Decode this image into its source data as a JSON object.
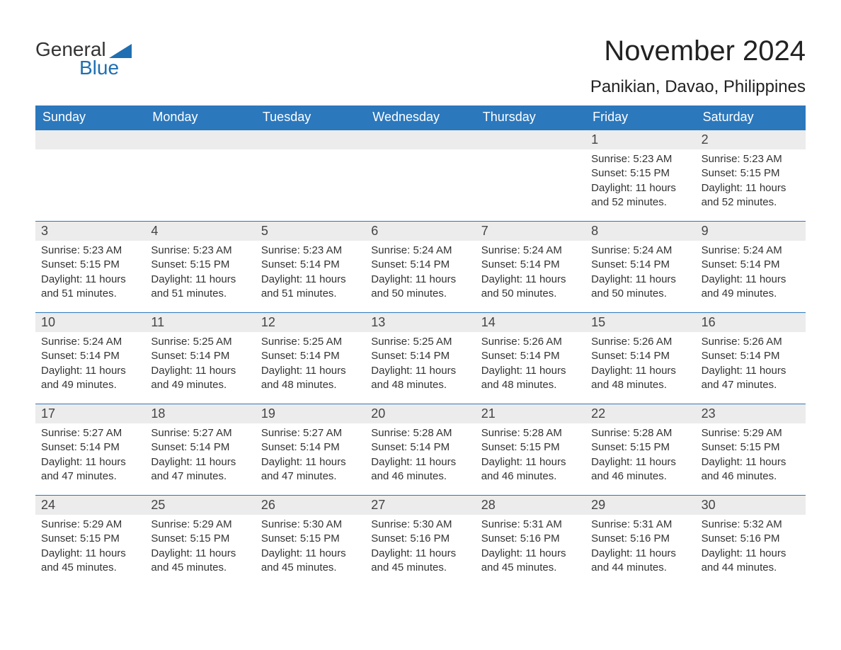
{
  "logo": {
    "line1": "General",
    "line2": "Blue",
    "accent_color": "#1f6fb2",
    "text_color": "#333333"
  },
  "title": {
    "month": "November 2024",
    "location": "Panikian, Davao, Philippines",
    "month_fontsize": 40,
    "location_fontsize": 24,
    "text_color": "#222222"
  },
  "calendar": {
    "type": "calendar-table",
    "header_bg": "#2b78bd",
    "header_text_color": "#ffffff",
    "daynum_band_bg": "#ececec",
    "week_divider_color": "#2b78bd",
    "body_text_color": "#333333",
    "body_fontsize": 15,
    "daynum_fontsize": 18,
    "days_of_week": [
      "Sunday",
      "Monday",
      "Tuesday",
      "Wednesday",
      "Thursday",
      "Friday",
      "Saturday"
    ],
    "weeks": [
      [
        {
          "day": "",
          "lines": []
        },
        {
          "day": "",
          "lines": []
        },
        {
          "day": "",
          "lines": []
        },
        {
          "day": "",
          "lines": []
        },
        {
          "day": "",
          "lines": []
        },
        {
          "day": "1",
          "lines": [
            "Sunrise: 5:23 AM",
            "Sunset: 5:15 PM",
            "Daylight: 11 hours and 52 minutes."
          ]
        },
        {
          "day": "2",
          "lines": [
            "Sunrise: 5:23 AM",
            "Sunset: 5:15 PM",
            "Daylight: 11 hours and 52 minutes."
          ]
        }
      ],
      [
        {
          "day": "3",
          "lines": [
            "Sunrise: 5:23 AM",
            "Sunset: 5:15 PM",
            "Daylight: 11 hours and 51 minutes."
          ]
        },
        {
          "day": "4",
          "lines": [
            "Sunrise: 5:23 AM",
            "Sunset: 5:15 PM",
            "Daylight: 11 hours and 51 minutes."
          ]
        },
        {
          "day": "5",
          "lines": [
            "Sunrise: 5:23 AM",
            "Sunset: 5:14 PM",
            "Daylight: 11 hours and 51 minutes."
          ]
        },
        {
          "day": "6",
          "lines": [
            "Sunrise: 5:24 AM",
            "Sunset: 5:14 PM",
            "Daylight: 11 hours and 50 minutes."
          ]
        },
        {
          "day": "7",
          "lines": [
            "Sunrise: 5:24 AM",
            "Sunset: 5:14 PM",
            "Daylight: 11 hours and 50 minutes."
          ]
        },
        {
          "day": "8",
          "lines": [
            "Sunrise: 5:24 AM",
            "Sunset: 5:14 PM",
            "Daylight: 11 hours and 50 minutes."
          ]
        },
        {
          "day": "9",
          "lines": [
            "Sunrise: 5:24 AM",
            "Sunset: 5:14 PM",
            "Daylight: 11 hours and 49 minutes."
          ]
        }
      ],
      [
        {
          "day": "10",
          "lines": [
            "Sunrise: 5:24 AM",
            "Sunset: 5:14 PM",
            "Daylight: 11 hours and 49 minutes."
          ]
        },
        {
          "day": "11",
          "lines": [
            "Sunrise: 5:25 AM",
            "Sunset: 5:14 PM",
            "Daylight: 11 hours and 49 minutes."
          ]
        },
        {
          "day": "12",
          "lines": [
            "Sunrise: 5:25 AM",
            "Sunset: 5:14 PM",
            "Daylight: 11 hours and 48 minutes."
          ]
        },
        {
          "day": "13",
          "lines": [
            "Sunrise: 5:25 AM",
            "Sunset: 5:14 PM",
            "Daylight: 11 hours and 48 minutes."
          ]
        },
        {
          "day": "14",
          "lines": [
            "Sunrise: 5:26 AM",
            "Sunset: 5:14 PM",
            "Daylight: 11 hours and 48 minutes."
          ]
        },
        {
          "day": "15",
          "lines": [
            "Sunrise: 5:26 AM",
            "Sunset: 5:14 PM",
            "Daylight: 11 hours and 48 minutes."
          ]
        },
        {
          "day": "16",
          "lines": [
            "Sunrise: 5:26 AM",
            "Sunset: 5:14 PM",
            "Daylight: 11 hours and 47 minutes."
          ]
        }
      ],
      [
        {
          "day": "17",
          "lines": [
            "Sunrise: 5:27 AM",
            "Sunset: 5:14 PM",
            "Daylight: 11 hours and 47 minutes."
          ]
        },
        {
          "day": "18",
          "lines": [
            "Sunrise: 5:27 AM",
            "Sunset: 5:14 PM",
            "Daylight: 11 hours and 47 minutes."
          ]
        },
        {
          "day": "19",
          "lines": [
            "Sunrise: 5:27 AM",
            "Sunset: 5:14 PM",
            "Daylight: 11 hours and 47 minutes."
          ]
        },
        {
          "day": "20",
          "lines": [
            "Sunrise: 5:28 AM",
            "Sunset: 5:14 PM",
            "Daylight: 11 hours and 46 minutes."
          ]
        },
        {
          "day": "21",
          "lines": [
            "Sunrise: 5:28 AM",
            "Sunset: 5:15 PM",
            "Daylight: 11 hours and 46 minutes."
          ]
        },
        {
          "day": "22",
          "lines": [
            "Sunrise: 5:28 AM",
            "Sunset: 5:15 PM",
            "Daylight: 11 hours and 46 minutes."
          ]
        },
        {
          "day": "23",
          "lines": [
            "Sunrise: 5:29 AM",
            "Sunset: 5:15 PM",
            "Daylight: 11 hours and 46 minutes."
          ]
        }
      ],
      [
        {
          "day": "24",
          "lines": [
            "Sunrise: 5:29 AM",
            "Sunset: 5:15 PM",
            "Daylight: 11 hours and 45 minutes."
          ]
        },
        {
          "day": "25",
          "lines": [
            "Sunrise: 5:29 AM",
            "Sunset: 5:15 PM",
            "Daylight: 11 hours and 45 minutes."
          ]
        },
        {
          "day": "26",
          "lines": [
            "Sunrise: 5:30 AM",
            "Sunset: 5:15 PM",
            "Daylight: 11 hours and 45 minutes."
          ]
        },
        {
          "day": "27",
          "lines": [
            "Sunrise: 5:30 AM",
            "Sunset: 5:16 PM",
            "Daylight: 11 hours and 45 minutes."
          ]
        },
        {
          "day": "28",
          "lines": [
            "Sunrise: 5:31 AM",
            "Sunset: 5:16 PM",
            "Daylight: 11 hours and 45 minutes."
          ]
        },
        {
          "day": "29",
          "lines": [
            "Sunrise: 5:31 AM",
            "Sunset: 5:16 PM",
            "Daylight: 11 hours and 44 minutes."
          ]
        },
        {
          "day": "30",
          "lines": [
            "Sunrise: 5:32 AM",
            "Sunset: 5:16 PM",
            "Daylight: 11 hours and 44 minutes."
          ]
        }
      ]
    ]
  }
}
